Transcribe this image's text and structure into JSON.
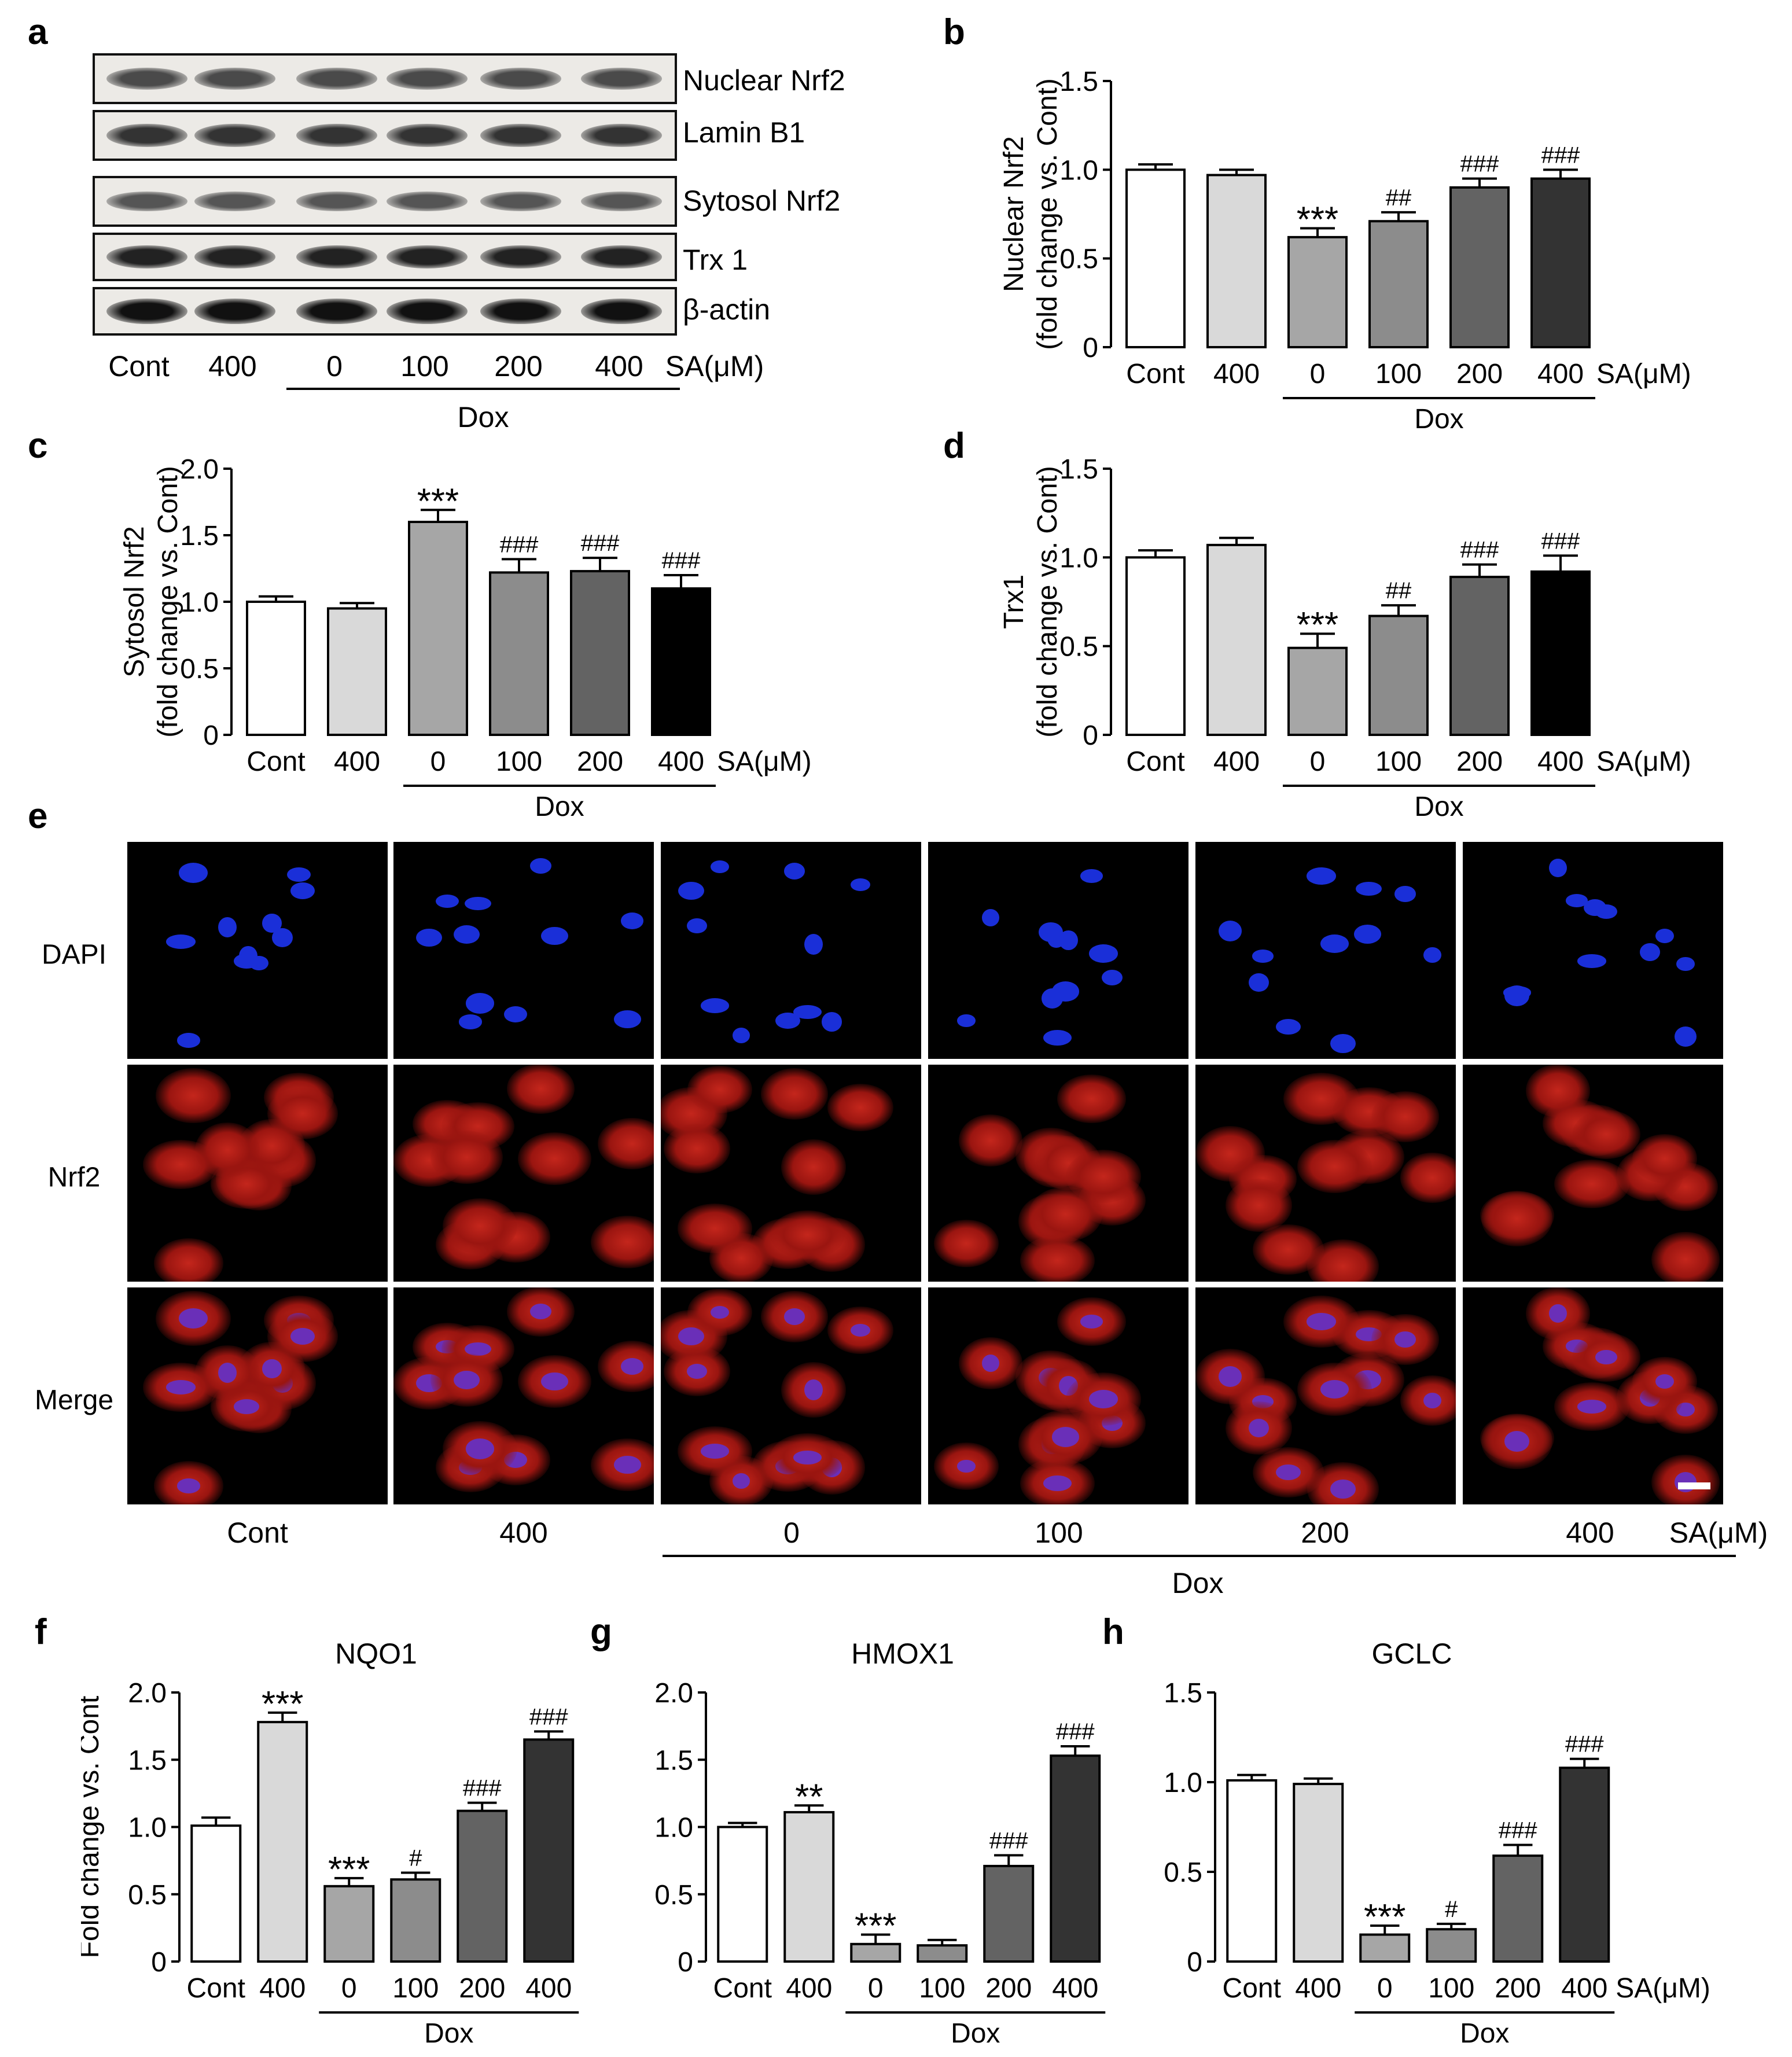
{
  "panel_labels": [
    "a",
    "b",
    "c",
    "d",
    "e",
    "f",
    "g",
    "h"
  ],
  "western_blot": {
    "rows": [
      "Nuclear Nrf2",
      "Lamin B1",
      "Sytosol Nrf2",
      "Trx 1",
      "β-actin"
    ],
    "lanes": [
      "Cont",
      "400",
      "0",
      "100",
      "200",
      "400"
    ],
    "unit_label": "SA(μM)",
    "group_label": "Dox"
  },
  "microscopy": {
    "rows": [
      "DAPI",
      "Nrf2",
      "Merge"
    ],
    "columns": [
      "Cont",
      "400",
      "0",
      "100",
      "200",
      "400"
    ],
    "unit_label": "SA(μM)",
    "group_label": "Dox"
  },
  "colors": {
    "bar_fills": [
      "#ffffff",
      "#d9d9d9",
      "#a6a6a6",
      "#8c8c8c",
      "#636363",
      "#333333"
    ],
    "bar_fills_black_last": [
      "#ffffff",
      "#d9d9d9",
      "#a6a6a6",
      "#8c8c8c",
      "#636363",
      "#000000"
    ]
  },
  "chart_data": [
    {
      "panel": "b",
      "type": "bar",
      "categories": [
        "Cont",
        "400",
        "0",
        "100",
        "200",
        "400"
      ],
      "values": [
        1.0,
        0.97,
        0.62,
        0.71,
        0.9,
        0.95
      ],
      "errors": [
        0.03,
        0.03,
        0.05,
        0.05,
        0.05,
        0.05
      ],
      "annotations": [
        "",
        "",
        "***",
        "##",
        "###",
        "###"
      ],
      "title": "",
      "ylabel": "Nuclear Nrf2\n(fold change vs. Cont)",
      "ylim": [
        0,
        1.5
      ],
      "yticks": [
        0,
        0.5,
        1.0,
        1.5
      ],
      "unit_label": "SA(μM)",
      "group_label": "Dox",
      "fill_set": "bar_fills"
    },
    {
      "panel": "c",
      "type": "bar",
      "categories": [
        "Cont",
        "400",
        "0",
        "100",
        "200",
        "400"
      ],
      "values": [
        1.0,
        0.95,
        1.6,
        1.22,
        1.23,
        1.1
      ],
      "errors": [
        0.04,
        0.04,
        0.09,
        0.1,
        0.1,
        0.1
      ],
      "annotations": [
        "",
        "",
        "***",
        "###",
        "###",
        "###"
      ],
      "title": "",
      "ylabel": "Sytosol Nrf2\n(fold change vs. Cont)",
      "ylim": [
        0,
        2.0
      ],
      "yticks": [
        0,
        0.5,
        1.0,
        1.5,
        2.0
      ],
      "unit_label": "SA(μM)",
      "group_label": "Dox",
      "fill_set": "bar_fills_black_last"
    },
    {
      "panel": "d",
      "type": "bar",
      "categories": [
        "Cont",
        "400",
        "0",
        "100",
        "200",
        "400"
      ],
      "values": [
        1.0,
        1.07,
        0.49,
        0.67,
        0.89,
        0.92
      ],
      "errors": [
        0.04,
        0.04,
        0.08,
        0.06,
        0.07,
        0.09
      ],
      "annotations": [
        "",
        "",
        "***",
        "##",
        "###",
        "###"
      ],
      "title": "",
      "ylabel": "Trx1\n(fold change vs. Cont)",
      "ylim": [
        0,
        1.5
      ],
      "yticks": [
        0,
        0.5,
        1.0,
        1.5
      ],
      "unit_label": "SA(μM)",
      "group_label": "Dox",
      "fill_set": "bar_fills_black_last"
    },
    {
      "panel": "f",
      "type": "bar",
      "categories": [
        "Cont",
        "400",
        "0",
        "100",
        "200",
        "400"
      ],
      "values": [
        1.01,
        1.78,
        0.56,
        0.61,
        1.12,
        1.65
      ],
      "errors": [
        0.06,
        0.07,
        0.06,
        0.05,
        0.06,
        0.06
      ],
      "annotations": [
        "",
        "***",
        "***",
        "#",
        "###",
        "###"
      ],
      "title": "NQO1",
      "ylabel": "Fold change vs. Cont",
      "ylim": [
        0,
        2.0
      ],
      "yticks": [
        0,
        0.5,
        1.0,
        1.5,
        2.0
      ],
      "unit_label": "",
      "group_label": "Dox",
      "fill_set": "bar_fills"
    },
    {
      "panel": "g",
      "type": "bar",
      "categories": [
        "Cont",
        "400",
        "0",
        "100",
        "200",
        "400"
      ],
      "values": [
        1.0,
        1.11,
        0.13,
        0.12,
        0.71,
        1.53
      ],
      "errors": [
        0.03,
        0.05,
        0.07,
        0.04,
        0.08,
        0.07
      ],
      "annotations": [
        "",
        "**",
        "***",
        "",
        "###",
        "###"
      ],
      "title": "HMOX1",
      "ylabel": "",
      "ylim": [
        0,
        2.0
      ],
      "yticks": [
        0,
        0.5,
        1.0,
        1.5,
        2.0
      ],
      "unit_label": "",
      "group_label": "Dox",
      "fill_set": "bar_fills"
    },
    {
      "panel": "h",
      "type": "bar",
      "categories": [
        "Cont",
        "400",
        "0",
        "100",
        "200",
        "400"
      ],
      "values": [
        1.01,
        0.99,
        0.15,
        0.18,
        0.59,
        1.08
      ],
      "errors": [
        0.03,
        0.03,
        0.05,
        0.03,
        0.06,
        0.05
      ],
      "annotations": [
        "",
        "",
        "***",
        "#",
        "###",
        "###"
      ],
      "title": "GCLC",
      "ylabel": "",
      "ylim": [
        0,
        1.5
      ],
      "yticks": [
        0,
        0.5,
        1.0,
        1.5
      ],
      "unit_label": "SA(μM)",
      "group_label": "Dox",
      "fill_set": "bar_fills"
    }
  ]
}
